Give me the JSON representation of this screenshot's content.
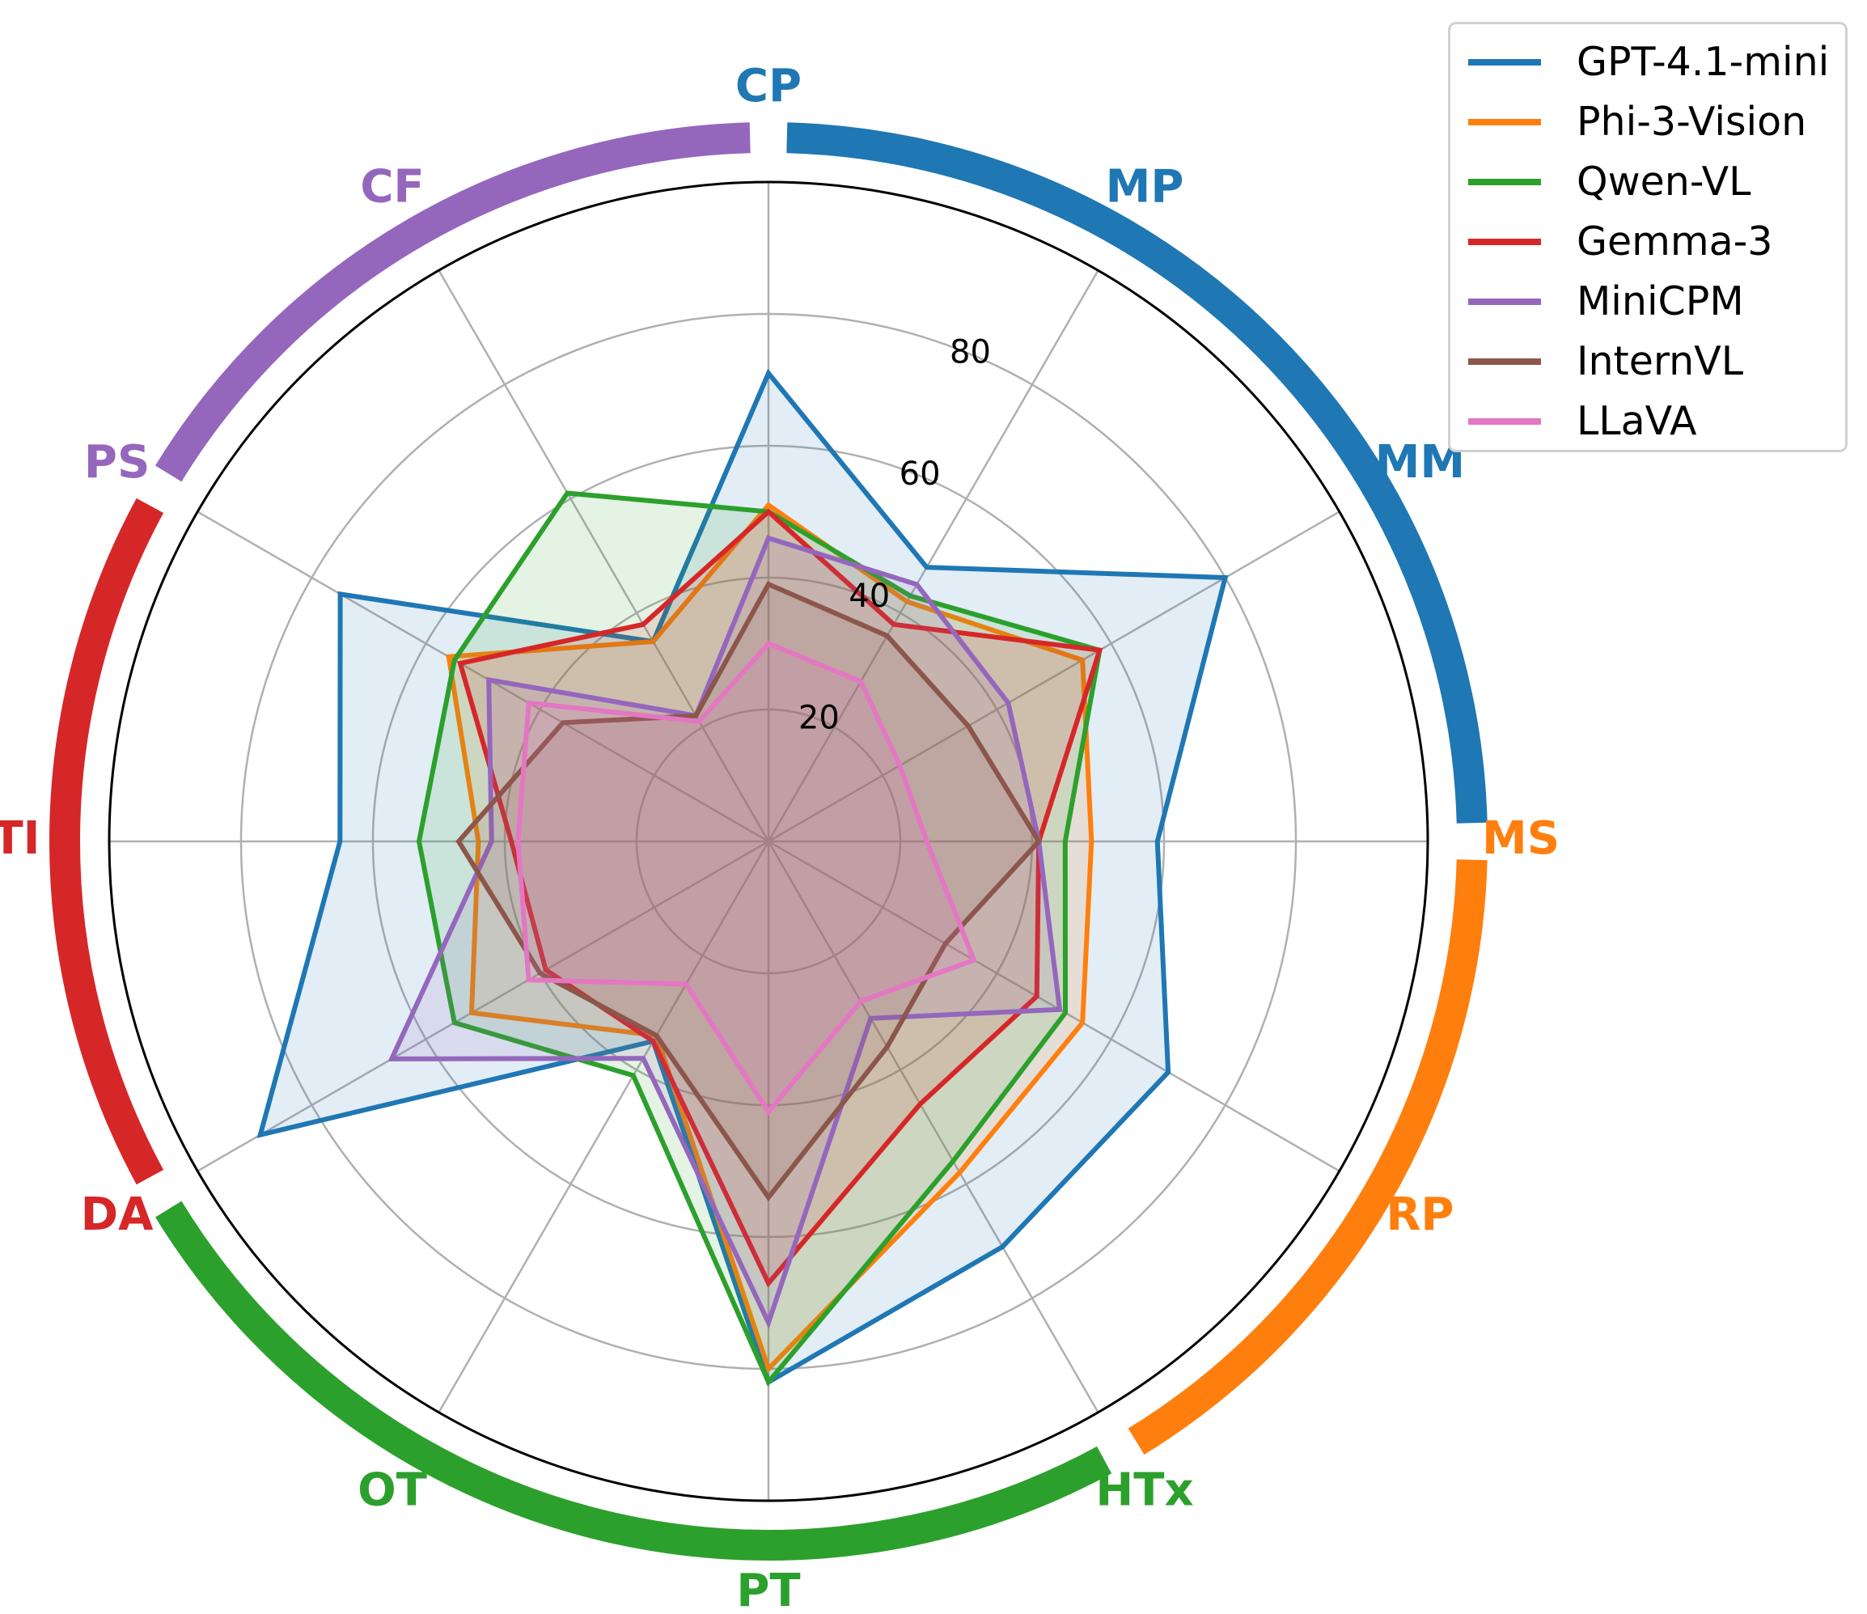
{
  "chart_data": {
    "type": "radar",
    "axes": [
      "CP",
      "MP",
      "MM",
      "MS",
      "RP",
      "HTx",
      "PT",
      "OT",
      "DA",
      "TI",
      "PS",
      "CF"
    ],
    "axis_colors": [
      "#1f77b4",
      "#1f77b4",
      "#1f77b4",
      "#ff7f0e",
      "#ff7f0e",
      "#2ca02c",
      "#2ca02c",
      "#2ca02c",
      "#d62728",
      "#d62728",
      "#9467bd",
      "#9467bd"
    ],
    "radial_ticks": [
      "20",
      "40",
      "60",
      "80"
    ],
    "radial_range": [
      0,
      100
    ],
    "grid": true,
    "legend_position": "top-right",
    "series": [
      {
        "name": "GPT-4.1-mini",
        "color": "#1f77b4",
        "values": [
          71,
          48,
          80,
          59,
          70,
          71,
          82,
          35,
          89,
          65,
          75,
          35
        ]
      },
      {
        "name": "Phi-3-Vision",
        "color": "#ff7f0e",
        "values": [
          51,
          42,
          55,
          49,
          55,
          58,
          80,
          34,
          52,
          44,
          56,
          35
        ]
      },
      {
        "name": "Qwen-VL",
        "color": "#2ca02c",
        "values": [
          50,
          43,
          58,
          45,
          52,
          56,
          82,
          41,
          55,
          53,
          55,
          61
        ]
      },
      {
        "name": "Gemma-3",
        "color": "#d62728",
        "values": [
          50,
          38,
          58,
          41,
          47,
          46,
          67,
          35,
          39,
          39,
          54,
          38
        ]
      },
      {
        "name": "MiniCPM",
        "color": "#9467bd",
        "values": [
          46,
          45,
          42,
          41,
          51,
          31,
          73,
          38,
          66,
          42,
          49,
          22
        ]
      },
      {
        "name": "InternVL",
        "color": "#8c564b",
        "values": [
          39,
          36,
          35,
          41,
          31,
          36,
          54,
          34,
          40,
          47,
          36,
          22
        ]
      },
      {
        "name": "LLaVA",
        "color": "#e377c2",
        "values": [
          30,
          28,
          23,
          24,
          36,
          28,
          41,
          25,
          42,
          38,
          42,
          21
        ]
      }
    ]
  }
}
